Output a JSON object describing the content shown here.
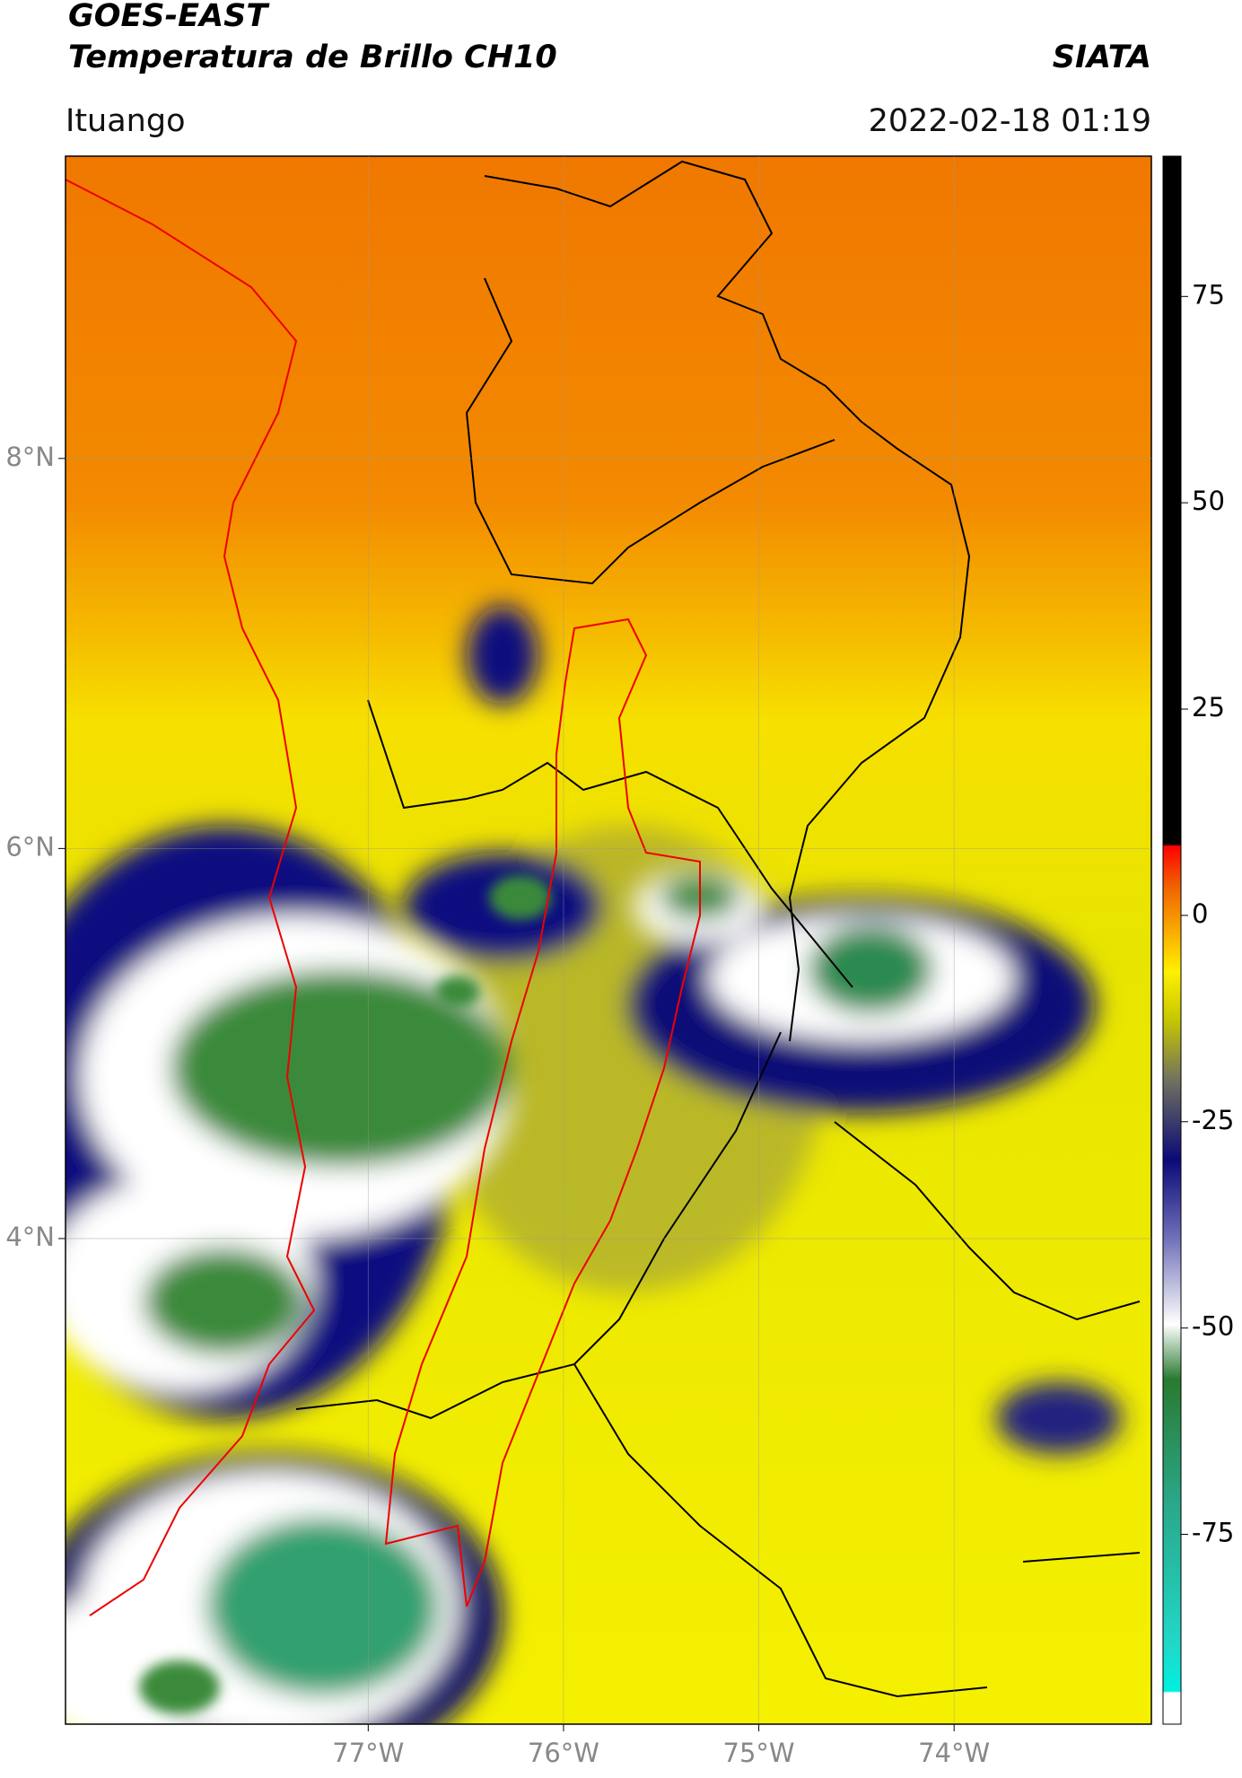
{
  "header": {
    "title": "GOES-EAST",
    "subtitle": "Temperatura de Brillo CH10",
    "source": "SIATA",
    "region": "Ituango",
    "datetime": "2022-02-18 01:19"
  },
  "map": {
    "lonlim": [
      -78.55,
      -72.99
    ],
    "latlim": [
      1.51,
      9.55
    ],
    "lonticks": [
      {
        "value": -77,
        "label": "77°W"
      },
      {
        "value": -76,
        "label": "76°W"
      },
      {
        "value": -75,
        "label": "75°W"
      },
      {
        "value": -74,
        "label": "74°W"
      }
    ],
    "latticks": [
      {
        "value": 8,
        "label": "8°N"
      },
      {
        "value": 6,
        "label": "6°N"
      },
      {
        "value": 4,
        "label": "4°N"
      }
    ],
    "grid": true
  },
  "colorbar": {
    "lim": [
      -98,
      92
    ],
    "ticks": [
      75,
      50,
      25,
      0,
      -25,
      -50,
      -75
    ]
  }
}
